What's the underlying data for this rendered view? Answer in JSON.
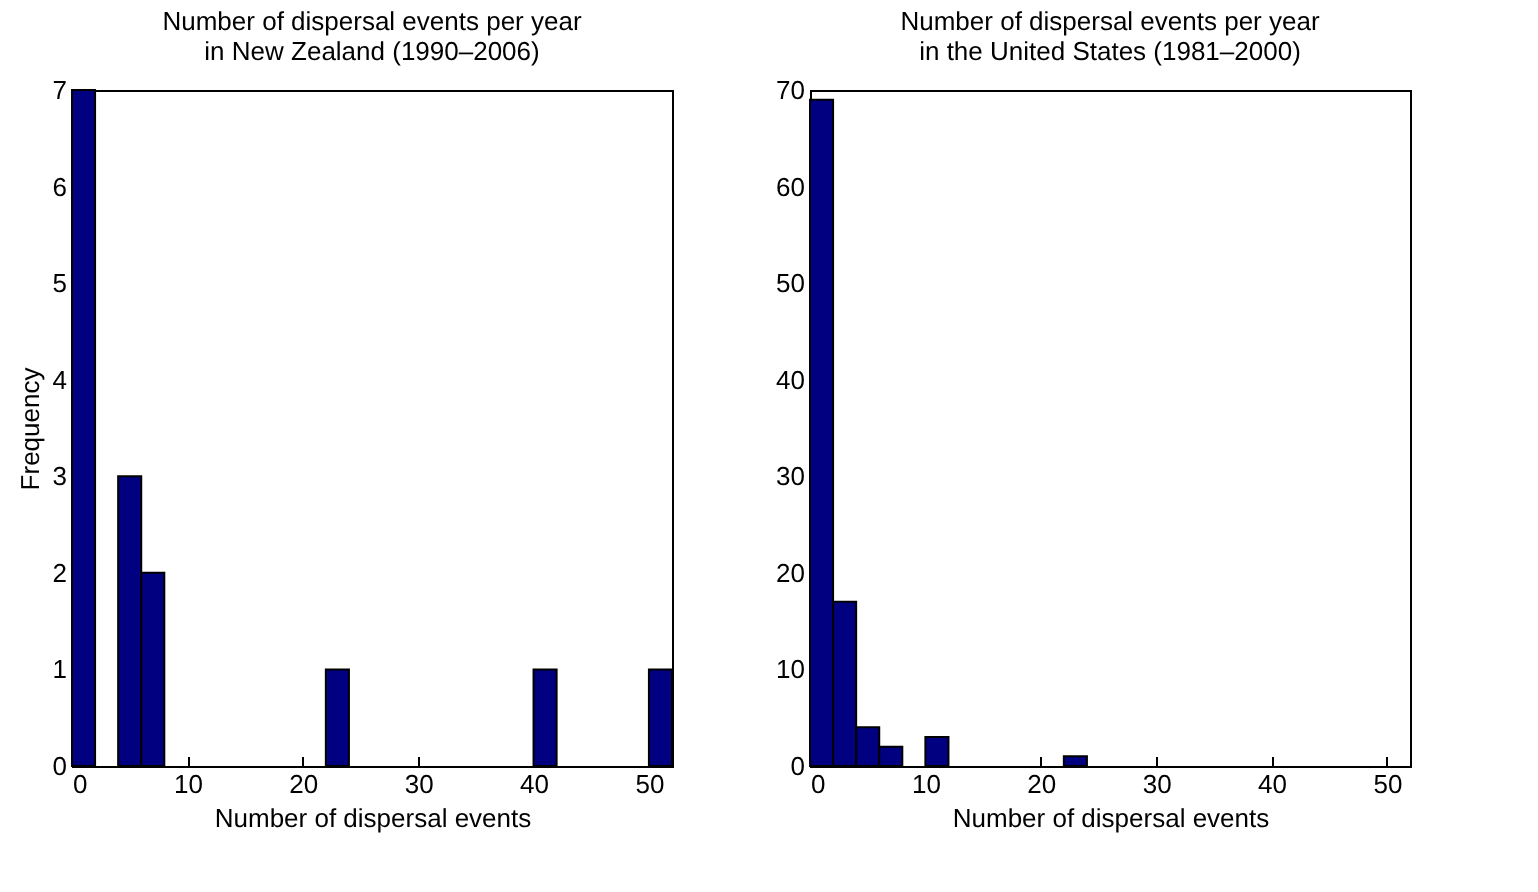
{
  "chart_data": [
    {
      "type": "histogram",
      "title": "Number of dispersal events per year\nin New Zealand (1990–2006)",
      "xlabel": "Number of dispersal events",
      "ylabel": "Frequency",
      "color": "#000080",
      "bins": [
        0,
        2,
        4,
        6,
        8,
        10,
        12,
        14,
        16,
        18,
        20,
        22,
        24,
        26,
        28,
        30,
        32,
        34,
        36,
        38,
        40,
        42,
        44,
        46,
        48,
        50,
        52
      ],
      "values": [
        7,
        0,
        3,
        2,
        0,
        0,
        0,
        0,
        0,
        0,
        0,
        1,
        0,
        0,
        0,
        0,
        0,
        0,
        0,
        0,
        1,
        0,
        0,
        0,
        0,
        1
      ],
      "xlim": [
        0,
        52
      ],
      "xticks": [
        0,
        10,
        20,
        30,
        40,
        50
      ],
      "ylim": [
        0,
        7
      ],
      "yticks": [
        0,
        1,
        2,
        3,
        4,
        5,
        6,
        7
      ],
      "grid": false
    },
    {
      "type": "histogram",
      "title": "Number of dispersal events per year\nin the United States (1981–2000)",
      "xlabel": "Number of dispersal events",
      "color": "#000080",
      "bins": [
        0,
        2,
        4,
        6,
        8,
        10,
        12,
        14,
        16,
        18,
        20,
        22,
        24,
        26,
        28,
        30,
        32,
        34,
        36,
        38,
        40,
        42,
        44,
        46,
        48,
        50,
        52
      ],
      "values": [
        69,
        17,
        4,
        2,
        0,
        3,
        0,
        0,
        0,
        0,
        0,
        1,
        0,
        0,
        0,
        0,
        0,
        0,
        0,
        0,
        0,
        0,
        0,
        0,
        0,
        0
      ],
      "xlim": [
        0,
        52
      ],
      "xticks": [
        0,
        10,
        20,
        30,
        40,
        50
      ],
      "ylim": [
        0,
        70
      ],
      "yticks": [
        0,
        10,
        20,
        30,
        40,
        50,
        60,
        70
      ],
      "grid": false
    }
  ]
}
